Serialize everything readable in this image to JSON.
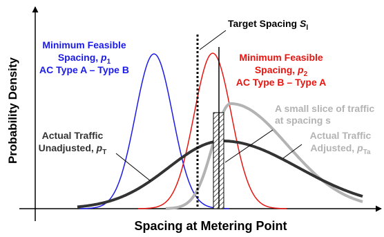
{
  "axes": {
    "ylabel": "Probability Density",
    "xlabel": "Spacing at Metering Point"
  },
  "labels": {
    "target": {
      "text": "Target Spacing ",
      "sym": "S",
      "sub": "l"
    },
    "min_ab": {
      "line1": "Minimum Feasible",
      "line2_text": "Spacing, ",
      "line2_sym": "p",
      "line2_sub": "1",
      "line3": "AC Type A – Type B"
    },
    "min_ba": {
      "line1": "Minimum Feasible",
      "line2_text": "Spacing, ",
      "line2_sym": "p",
      "line2_sub": "2",
      "line3": "AC Type B – Type A"
    },
    "slice": {
      "line1": "A small slice of traffic",
      "line2": "at spacing s"
    },
    "actual_unadj": {
      "line1": "Actual Traffic",
      "line2_text": "Unadjusted, ",
      "line2_sym": "p",
      "line2_sub": "T"
    },
    "actual_adj": {
      "line1": "Actual Traffic",
      "line2_text": "Adjusted, ",
      "line2_sym": "p",
      "line2_sub": "Ta"
    }
  },
  "colors": {
    "blue": "#1a1ae6",
    "red": "#e8140f",
    "dark": "#333333",
    "gray": "#b3b3b3",
    "axis": "#000000"
  }
}
